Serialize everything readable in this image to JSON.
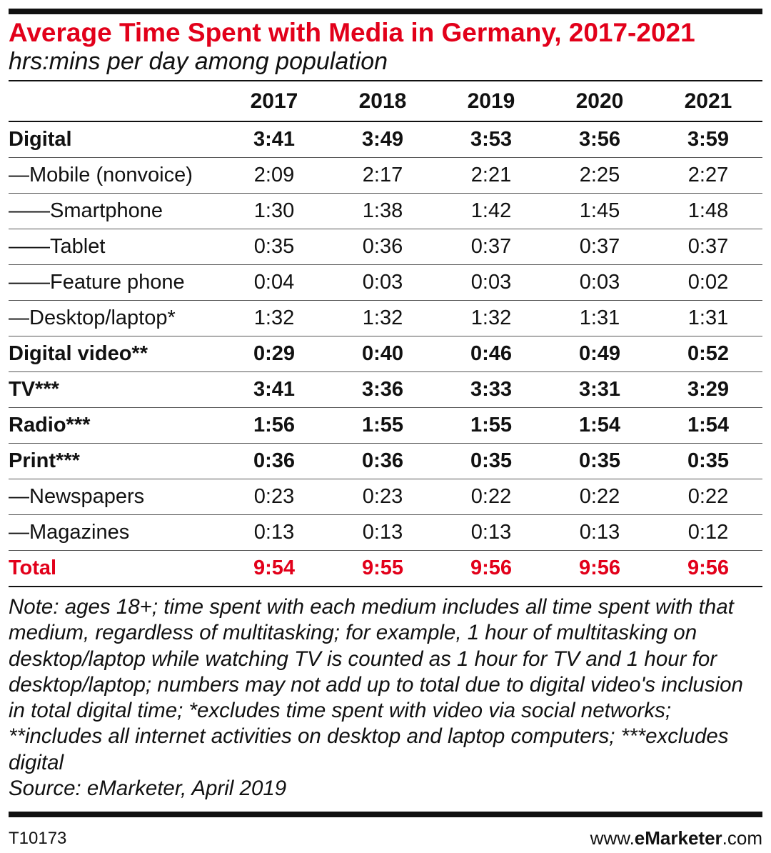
{
  "chart_data": {
    "type": "table",
    "title": "Average Time Spent with Media in Germany, 2017-2021",
    "subtitle": "hrs:mins per day among population",
    "columns": [
      "2017",
      "2018",
      "2019",
      "2020",
      "2021"
    ],
    "rows": [
      {
        "label": "Digital",
        "style": "bold",
        "values": [
          "3:41",
          "3:49",
          "3:53",
          "3:56",
          "3:59"
        ]
      },
      {
        "label": "—Mobile (nonvoice)",
        "style": "normal",
        "values": [
          "2:09",
          "2:17",
          "2:21",
          "2:25",
          "2:27"
        ]
      },
      {
        "label": "——Smartphone",
        "style": "normal",
        "values": [
          "1:30",
          "1:38",
          "1:42",
          "1:45",
          "1:48"
        ]
      },
      {
        "label": "——Tablet",
        "style": "normal",
        "values": [
          "0:35",
          "0:36",
          "0:37",
          "0:37",
          "0:37"
        ]
      },
      {
        "label": "——Feature phone",
        "style": "normal",
        "values": [
          "0:04",
          "0:03",
          "0:03",
          "0:03",
          "0:02"
        ]
      },
      {
        "label": "—Desktop/laptop*",
        "style": "normal",
        "values": [
          "1:32",
          "1:32",
          "1:32",
          "1:31",
          "1:31"
        ]
      },
      {
        "label": "Digital video**",
        "style": "bold",
        "values": [
          "0:29",
          "0:40",
          "0:46",
          "0:49",
          "0:52"
        ]
      },
      {
        "label": "TV***",
        "style": "bold",
        "values": [
          "3:41",
          "3:36",
          "3:33",
          "3:31",
          "3:29"
        ]
      },
      {
        "label": "Radio***",
        "style": "bold",
        "values": [
          "1:56",
          "1:55",
          "1:55",
          "1:54",
          "1:54"
        ]
      },
      {
        "label": "Print***",
        "style": "bold",
        "values": [
          "0:36",
          "0:36",
          "0:35",
          "0:35",
          "0:35"
        ]
      },
      {
        "label": "—Newspapers",
        "style": "normal",
        "values": [
          "0:23",
          "0:23",
          "0:22",
          "0:22",
          "0:22"
        ]
      },
      {
        "label": "—Magazines",
        "style": "normal",
        "values": [
          "0:13",
          "0:13",
          "0:13",
          "0:13",
          "0:12"
        ]
      },
      {
        "label": "Total",
        "style": "total",
        "values": [
          "9:54",
          "9:55",
          "9:56",
          "9:56",
          "9:56"
        ]
      }
    ],
    "note": "Note: ages 18+; time spent with each medium includes all time spent with that medium, regardless of multitasking; for example, 1 hour of multitasking on desktop/laptop while watching TV is counted as 1 hour for TV and 1 hour for desktop/laptop; numbers may not add up to total due to digital video's inclusion in total digital time; *excludes time spent with video via social networks; **includes all internet activities on desktop and laptop computers; ***excludes digital",
    "source": "Source: eMarketer, April 2019"
  },
  "footer": {
    "id": "T10173",
    "site_prefix": "www.",
    "site_brand": "eMarketer",
    "site_suffix": ".com"
  },
  "colors": {
    "accent": "#e2001a",
    "text": "#111111"
  }
}
